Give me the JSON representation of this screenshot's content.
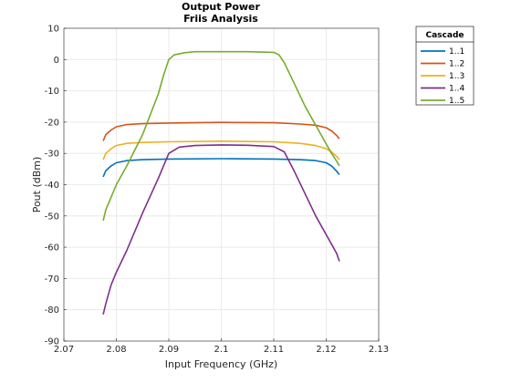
{
  "chart_data": {
    "type": "line",
    "title": "Output Power",
    "subtitle": "Friis Analysis",
    "xlabel": "Input Frequency (GHz)",
    "ylabel": "Pout (dBm)",
    "xlim": [
      2.07,
      2.13
    ],
    "ylim": [
      -90,
      10
    ],
    "xticks": [
      2.07,
      2.08,
      2.09,
      2.1,
      2.11,
      2.12,
      2.13
    ],
    "xtick_labels": [
      "2.07",
      "2.08",
      "2.09",
      "2.1",
      "2.11",
      "2.12",
      "2.13"
    ],
    "yticks": [
      10,
      0,
      -10,
      -20,
      -30,
      -40,
      -50,
      -60,
      -70,
      -80,
      -90
    ],
    "ytick_labels": [
      "10",
      "0",
      "-10",
      "-20",
      "-30",
      "-40",
      "-50",
      "-60",
      "-70",
      "-80",
      "-90"
    ],
    "grid": true,
    "legend": {
      "title": "Cascade",
      "placement": "outside-top-right"
    },
    "series": [
      {
        "name": "1..1",
        "color": "#0072BD",
        "x": [
          2.0775,
          2.078,
          2.079,
          2.08,
          2.082,
          2.085,
          2.09,
          2.1,
          2.11,
          2.115,
          2.118,
          2.12,
          2.121,
          2.122,
          2.1225
        ],
        "y": [
          -37.5,
          -35.5,
          -34,
          -33,
          -32.3,
          -32,
          -31.8,
          -31.7,
          -31.8,
          -32,
          -32.3,
          -33,
          -34,
          -35.7,
          -36.8
        ]
      },
      {
        "name": "1..2",
        "color": "#D95319",
        "x": [
          2.0775,
          2.078,
          2.079,
          2.08,
          2.082,
          2.085,
          2.09,
          2.1,
          2.11,
          2.115,
          2.118,
          2.12,
          2.121,
          2.122,
          2.1225
        ],
        "y": [
          -26,
          -24,
          -22.5,
          -21.5,
          -20.8,
          -20.5,
          -20.3,
          -20.1,
          -20.2,
          -20.6,
          -21,
          -21.8,
          -22.8,
          -24.3,
          -25.3
        ]
      },
      {
        "name": "1..3",
        "color": "#EDB120",
        "x": [
          2.0775,
          2.078,
          2.079,
          2.08,
          2.082,
          2.085,
          2.09,
          2.1,
          2.11,
          2.115,
          2.118,
          2.12,
          2.121,
          2.122,
          2.1225
        ],
        "y": [
          -32,
          -30,
          -28.5,
          -27.5,
          -26.8,
          -26.5,
          -26.3,
          -26.1,
          -26.3,
          -26.8,
          -27.5,
          -28.5,
          -29.5,
          -31,
          -32
        ]
      },
      {
        "name": "1..4",
        "color": "#7E2F8E",
        "x": [
          2.0775,
          2.078,
          2.079,
          2.08,
          2.082,
          2.085,
          2.088,
          2.09,
          2.092,
          2.095,
          2.1,
          2.105,
          2.11,
          2.112,
          2.114,
          2.116,
          2.118,
          2.12,
          2.121,
          2.122,
          2.1225
        ],
        "y": [
          -81.5,
          -78,
          -72,
          -68,
          -61,
          -49,
          -38,
          -30,
          -28,
          -27.5,
          -27.3,
          -27.4,
          -27.8,
          -29.5,
          -36,
          -43,
          -50,
          -56,
          -59,
          -62,
          -64.5
        ]
      },
      {
        "name": "1..5",
        "color": "#77AC30",
        "x": [
          2.0775,
          2.078,
          2.079,
          2.08,
          2.082,
          2.085,
          2.088,
          2.089,
          2.09,
          2.091,
          2.093,
          2.095,
          2.1,
          2.105,
          2.11,
          2.111,
          2.112,
          2.114,
          2.116,
          2.118,
          2.12,
          2.121,
          2.122,
          2.1225
        ],
        "y": [
          -51.5,
          -48,
          -44,
          -40,
          -34,
          -24,
          -11,
          -5,
          0,
          1.5,
          2.2,
          2.5,
          2.5,
          2.5,
          2.3,
          1.5,
          -1,
          -8,
          -15,
          -21,
          -27,
          -30,
          -32.5,
          -34
        ]
      }
    ]
  }
}
